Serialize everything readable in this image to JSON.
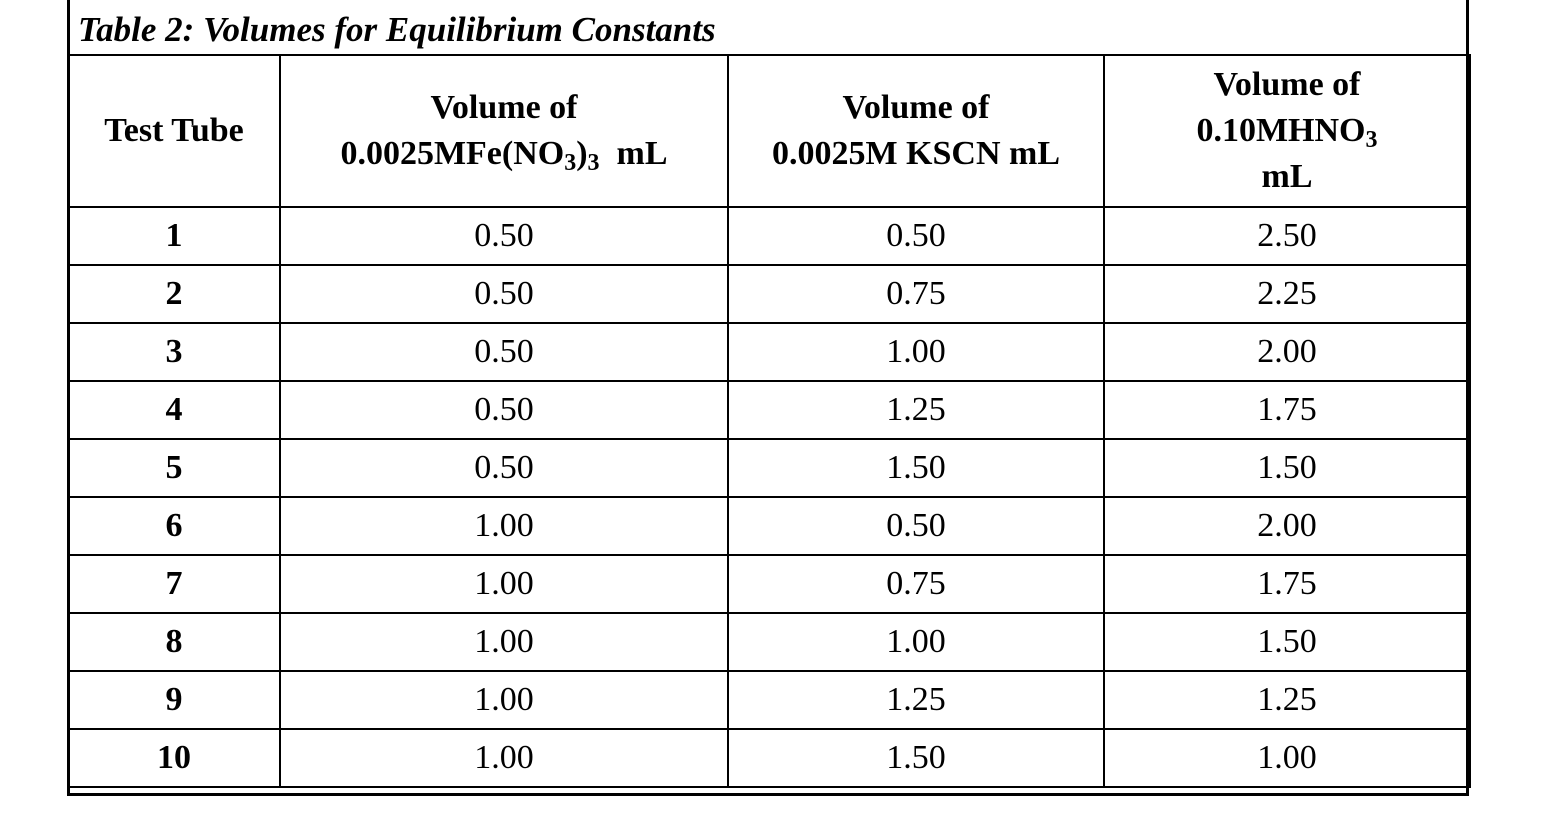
{
  "caption": "Table 2: Volumes for Equilibrium Constants",
  "headers": {
    "col1": "Test Tube",
    "col2": {
      "line1": "Volume of",
      "line2_pre": "0.0025MFe(NO",
      "line2_sub1": "3",
      "line2_mid": ")",
      "line2_sub2": "3",
      "line2_post": "  mL"
    },
    "col3": {
      "line1": "Volume of",
      "line2": "0.0025M KSCN mL"
    },
    "col4": {
      "line1": "Volume of",
      "line2_pre": "0.10MHNO",
      "line2_sub": "3",
      "line3": "mL"
    }
  },
  "rows": [
    {
      "tube": "1",
      "fe": "0.50",
      "kscn": "0.50",
      "hno3": "2.50"
    },
    {
      "tube": "2",
      "fe": "0.50",
      "kscn": "0.75",
      "hno3": "2.25"
    },
    {
      "tube": "3",
      "fe": "0.50",
      "kscn": "1.00",
      "hno3": "2.00"
    },
    {
      "tube": "4",
      "fe": "0.50",
      "kscn": "1.25",
      "hno3": "1.75"
    },
    {
      "tube": "5",
      "fe": "0.50",
      "kscn": "1.50",
      "hno3": "1.50"
    },
    {
      "tube": "6",
      "fe": "1.00",
      "kscn": "0.50",
      "hno3": "2.00"
    },
    {
      "tube": "7",
      "fe": "1.00",
      "kscn": "0.75",
      "hno3": "1.75"
    },
    {
      "tube": "8",
      "fe": "1.00",
      "kscn": "1.00",
      "hno3": "1.50"
    },
    {
      "tube": "9",
      "fe": "1.00",
      "kscn": "1.25",
      "hno3": "1.25"
    },
    {
      "tube": "10",
      "fe": "1.00",
      "kscn": "1.50",
      "hno3": "1.00"
    }
  ]
}
